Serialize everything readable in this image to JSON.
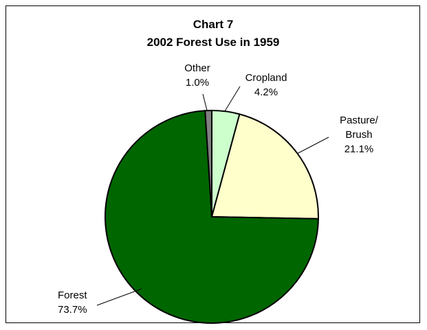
{
  "chart_data": {
    "type": "pie",
    "title": "Chart 7",
    "subtitle": "2002 Forest Use in 1959",
    "slices": [
      {
        "name": "Cropland",
        "label_lines": [
          "Cropland"
        ],
        "value_label": "4.2%",
        "value": 4.2,
        "color": "#ccffcc"
      },
      {
        "name": "Pasture/ Brush",
        "label_lines": [
          "Pasture/",
          "Brush"
        ],
        "value_label": "21.1%",
        "value": 21.1,
        "color": "#ffffcc"
      },
      {
        "name": "Forest",
        "label_lines": [
          "Forest"
        ],
        "value_label": "73.7%",
        "value": 73.7,
        "color": "#006600"
      },
      {
        "name": "Other",
        "label_lines": [
          "Other"
        ],
        "value_label": "1.0%",
        "value": 1.0,
        "color": "#808080"
      }
    ]
  }
}
